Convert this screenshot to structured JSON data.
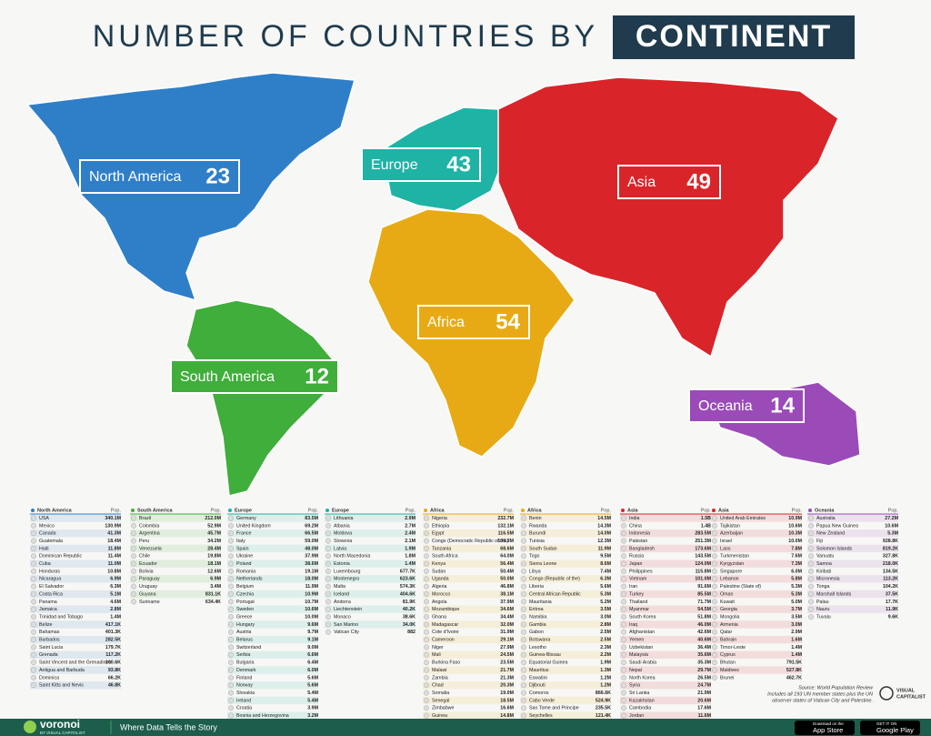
{
  "header": {
    "title": "NUMBER OF COUNTRIES BY",
    "highlight": "CONTINENT"
  },
  "table": {
    "pop_label": "Pop."
  },
  "continents": [
    {
      "name": "North America",
      "count": 23,
      "color": "#2f7fc8",
      "countries": [
        [
          "USA",
          "340.1M"
        ],
        [
          "Mexico",
          "130.9M"
        ],
        [
          "Canada",
          "41.3M"
        ],
        [
          "Guatemala",
          "18.4M"
        ],
        [
          "Haiti",
          "11.8M"
        ],
        [
          "Dominican Republic",
          "11.4M"
        ],
        [
          "Cuba",
          "11.0M"
        ],
        [
          "Honduras",
          "10.8M"
        ],
        [
          "Nicaragua",
          "6.9M"
        ],
        [
          "El Salvador",
          "6.3M"
        ],
        [
          "Costa Rica",
          "5.1M"
        ],
        [
          "Panama",
          "4.6M"
        ],
        [
          "Jamaica",
          "2.8M"
        ],
        [
          "Trinidad and Tobago",
          "1.4M"
        ],
        [
          "Belize",
          "417.1K"
        ],
        [
          "Bahamas",
          "401.3K"
        ],
        [
          "Barbados",
          "282.5K"
        ],
        [
          "Saint Lucia",
          "179.7K"
        ],
        [
          "Grenada",
          "117.2K"
        ],
        [
          "Saint Vincent and the Grenadines",
          "100.6K"
        ],
        [
          "Antigua and Barbuda",
          "93.8K"
        ],
        [
          "Dominica",
          "66.2K"
        ],
        [
          "Saint Kitts and Nevis",
          "46.8K"
        ]
      ]
    },
    {
      "name": "South America",
      "count": 12,
      "color": "#3fae3a",
      "countries": [
        [
          "Brazil",
          "212.0M"
        ],
        [
          "Colombia",
          "52.9M"
        ],
        [
          "Argentina",
          "45.7M"
        ],
        [
          "Peru",
          "34.2M"
        ],
        [
          "Venezuela",
          "28.4M"
        ],
        [
          "Chile",
          "19.8M"
        ],
        [
          "Ecuador",
          "18.1M"
        ],
        [
          "Bolivia",
          "12.6M"
        ],
        [
          "Paraguay",
          "6.9M"
        ],
        [
          "Uruguay",
          "3.4M"
        ],
        [
          "Guyana",
          "831.1K"
        ],
        [
          "Suriname",
          "634.4K"
        ]
      ]
    },
    {
      "name": "Europe",
      "count": 43,
      "color": "#1fb3a6",
      "countries": [
        [
          "Germany",
          "83.5M"
        ],
        [
          "United Kingdom",
          "69.2M"
        ],
        [
          "France",
          "66.5M"
        ],
        [
          "Italy",
          "59.0M"
        ],
        [
          "Spain",
          "48.0M"
        ],
        [
          "Ukraine",
          "37.9M"
        ],
        [
          "Poland",
          "38.6M"
        ],
        [
          "Romania",
          "19.1M"
        ],
        [
          "Netherlands",
          "18.0M"
        ],
        [
          "Belgium",
          "11.9M"
        ],
        [
          "Czechia",
          "10.9M"
        ],
        [
          "Portugal",
          "10.7M"
        ],
        [
          "Sweden",
          "10.6M"
        ],
        [
          "Greece",
          "10.0M"
        ],
        [
          "Hungary",
          "9.6M"
        ],
        [
          "Austria",
          "9.7M"
        ],
        [
          "Belarus",
          "9.1M"
        ],
        [
          "Switzerland",
          "9.0M"
        ],
        [
          "Serbia",
          "6.6M"
        ],
        [
          "Bulgaria",
          "6.4M"
        ],
        [
          "Denmark",
          "6.0M"
        ],
        [
          "Finland",
          "5.6M"
        ],
        [
          "Norway",
          "5.6M"
        ],
        [
          "Slovakia",
          "5.4M"
        ],
        [
          "Ireland",
          "5.4M"
        ],
        [
          "Croatia",
          "3.9M"
        ],
        [
          "Bosnia and Herzegovina",
          "3.2M"
        ],
        [
          "Lithuania",
          "2.9M"
        ],
        [
          "Albania",
          "2.7M"
        ],
        [
          "Moldova",
          "2.4M"
        ],
        [
          "Slovenia",
          "2.1M"
        ],
        [
          "Latvia",
          "1.9M"
        ],
        [
          "North Macedonia",
          "1.8M"
        ],
        [
          "Estonia",
          "1.4M"
        ],
        [
          "Luxembourg",
          "677.7K"
        ],
        [
          "Montenegro",
          "623.6K"
        ],
        [
          "Malta",
          "574.3K"
        ],
        [
          "Iceland",
          "404.6K"
        ],
        [
          "Andorra",
          "81.9K"
        ],
        [
          "Liechtenstein",
          "40.2K"
        ],
        [
          "Monaco",
          "38.6K"
        ],
        [
          "San Marino",
          "34.0K"
        ],
        [
          "Vatican City",
          "882"
        ]
      ]
    },
    {
      "name": "Africa",
      "count": 54,
      "color": "#e8aa14",
      "countries": [
        [
          "Nigeria",
          "232.7M"
        ],
        [
          "Ethiopia",
          "132.1M"
        ],
        [
          "Egypt",
          "116.5M"
        ],
        [
          "Congo (Democratic Republic of the)",
          "109.3M"
        ],
        [
          "Tanzania",
          "68.6M"
        ],
        [
          "South Africa",
          "64.0M"
        ],
        [
          "Kenya",
          "56.4M"
        ],
        [
          "Sudan",
          "50.4M"
        ],
        [
          "Uganda",
          "50.0M"
        ],
        [
          "Algeria",
          "46.8M"
        ],
        [
          "Morocco",
          "38.1M"
        ],
        [
          "Angola",
          "37.9M"
        ],
        [
          "Mozambique",
          "34.6M"
        ],
        [
          "Ghana",
          "34.4M"
        ],
        [
          "Madagascar",
          "32.0M"
        ],
        [
          "Cote d'Ivoire",
          "31.9M"
        ],
        [
          "Cameroon",
          "29.1M"
        ],
        [
          "Niger",
          "27.9M"
        ],
        [
          "Mali",
          "24.5M"
        ],
        [
          "Burkina Faso",
          "23.5M"
        ],
        [
          "Malawi",
          "21.7M"
        ],
        [
          "Zambia",
          "21.3M"
        ],
        [
          "Chad",
          "20.3M"
        ],
        [
          "Somalia",
          "19.0M"
        ],
        [
          "Senegal",
          "18.5M"
        ],
        [
          "Zimbabwe",
          "16.6M"
        ],
        [
          "Guinea",
          "14.8M"
        ],
        [
          "Benin",
          "14.5M"
        ],
        [
          "Rwanda",
          "14.3M"
        ],
        [
          "Burundi",
          "14.0M"
        ],
        [
          "Tunisia",
          "12.3M"
        ],
        [
          "South Sudan",
          "11.9M"
        ],
        [
          "Togo",
          "9.5M"
        ],
        [
          "Sierra Leone",
          "8.6M"
        ],
        [
          "Libya",
          "7.4M"
        ],
        [
          "Congo (Republic of the)",
          "6.3M"
        ],
        [
          "Liberia",
          "5.6M"
        ],
        [
          "Central African Republic",
          "5.3M"
        ],
        [
          "Mauritania",
          "5.2M"
        ],
        [
          "Eritrea",
          "3.5M"
        ],
        [
          "Namibia",
          "3.0M"
        ],
        [
          "Gambia",
          "2.8M"
        ],
        [
          "Gabon",
          "2.5M"
        ],
        [
          "Botswana",
          "2.5M"
        ],
        [
          "Lesotho",
          "2.3M"
        ],
        [
          "Guinea-Bissau",
          "2.2M"
        ],
        [
          "Equatorial Guinea",
          "1.9M"
        ],
        [
          "Mauritius",
          "1.3M"
        ],
        [
          "Eswatini",
          "1.2M"
        ],
        [
          "Djibouti",
          "1.2M"
        ],
        [
          "Comoros",
          "866.6K"
        ],
        [
          "Cabo Verde",
          "524.9K"
        ],
        [
          "Sao Tome and Principe",
          "235.5K"
        ],
        [
          "Seychelles",
          "121.4K"
        ]
      ]
    },
    {
      "name": "Asia",
      "count": 49,
      "color": "#d9252a",
      "countries": [
        [
          "India",
          "1.5B"
        ],
        [
          "China",
          "1.4B"
        ],
        [
          "Indonesia",
          "283.5M"
        ],
        [
          "Pakistan",
          "251.3M"
        ],
        [
          "Bangladesh",
          "173.6M"
        ],
        [
          "Russia",
          "143.5M"
        ],
        [
          "Japan",
          "124.0M"
        ],
        [
          "Philippines",
          "115.8M"
        ],
        [
          "Vietnam",
          "101.0M"
        ],
        [
          "Iran",
          "91.6M"
        ],
        [
          "Turkey",
          "85.5M"
        ],
        [
          "Thailand",
          "71.7M"
        ],
        [
          "Myanmar",
          "54.5M"
        ],
        [
          "South Korea",
          "51.8M"
        ],
        [
          "Iraq",
          "46.0M"
        ],
        [
          "Afghanistan",
          "42.6M"
        ],
        [
          "Yemen",
          "40.6M"
        ],
        [
          "Uzbekistan",
          "36.4M"
        ],
        [
          "Malaysia",
          "35.6M"
        ],
        [
          "Saudi Arabia",
          "35.3M"
        ],
        [
          "Nepal",
          "29.7M"
        ],
        [
          "North Korea",
          "26.5M"
        ],
        [
          "Syria",
          "24.7M"
        ],
        [
          "Sri Lanka",
          "21.9M"
        ],
        [
          "Kazakhstan",
          "20.6M"
        ],
        [
          "Cambodia",
          "17.6M"
        ],
        [
          "Jordan",
          "11.6M"
        ],
        [
          "United Arab Emirates",
          "10.9M"
        ],
        [
          "Tajikistan",
          "10.6M"
        ],
        [
          "Azerbaijan",
          "10.3M"
        ],
        [
          "Israel",
          "10.0M"
        ],
        [
          "Laos",
          "7.8M"
        ],
        [
          "Turkmenistan",
          "7.6M"
        ],
        [
          "Kyrgyzstan",
          "7.3M"
        ],
        [
          "Singapore",
          "6.0M"
        ],
        [
          "Lebanon",
          "5.8M"
        ],
        [
          "Palestine (State of)",
          "5.3M"
        ],
        [
          "Oman",
          "5.3M"
        ],
        [
          "Kuwait",
          "5.0M"
        ],
        [
          "Georgia",
          "3.7M"
        ],
        [
          "Mongolia",
          "3.5M"
        ],
        [
          "Armenia",
          "3.0M"
        ],
        [
          "Qatar",
          "2.9M"
        ],
        [
          "Bahrain",
          "1.6M"
        ],
        [
          "Timor-Leste",
          "1.4M"
        ],
        [
          "Cyprus",
          "1.4M"
        ],
        [
          "Bhutan",
          "791.5K"
        ],
        [
          "Maldives",
          "527.8K"
        ],
        [
          "Brunei",
          "462.7K"
        ]
      ]
    },
    {
      "name": "Oceania",
      "count": 14,
      "color": "#9b4bb8",
      "countries": [
        [
          "Australia",
          "27.2M"
        ],
        [
          "Papua New Guinea",
          "10.6M"
        ],
        [
          "New Zealand",
          "5.3M"
        ],
        [
          "Fiji",
          "928.8K"
        ],
        [
          "Solomon Islands",
          "819.2K"
        ],
        [
          "Vanuatu",
          "327.8K"
        ],
        [
          "Samoa",
          "218.0K"
        ],
        [
          "Kiribati",
          "134.5K"
        ],
        [
          "Micronesia",
          "113.2K"
        ],
        [
          "Tonga",
          "104.2K"
        ],
        [
          "Marshall Islands",
          "37.5K"
        ],
        [
          "Palau",
          "17.7K"
        ],
        [
          "Nauru",
          "11.9K"
        ],
        [
          "Tuvalu",
          "9.6K"
        ]
      ]
    }
  ],
  "source": [
    "Source: World Population Review",
    "Includes all 193 UN member states plus the UN",
    "observer states of Vatican City and Palestine."
  ],
  "logo": [
    "VISUAL",
    "CAPITALIST"
  ],
  "footer": {
    "brand": "voronoi",
    "byline": "BY VISUAL CAPITALIST",
    "tagline": "Where Data Tells the Story",
    "app_store": [
      "Download on the",
      "App Store"
    ],
    "google_play": [
      "GET IT ON",
      "Google Play"
    ]
  }
}
